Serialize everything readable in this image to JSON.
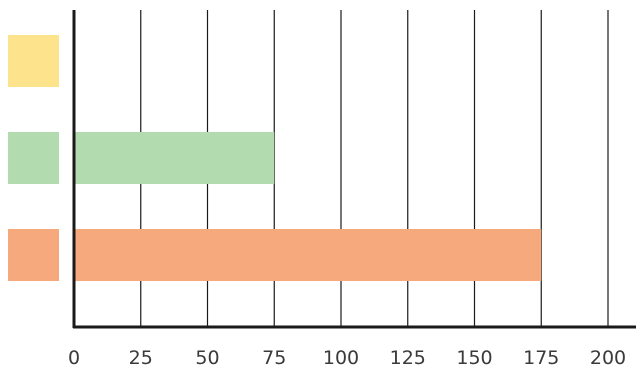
{
  "chart_data": {
    "type": "bar",
    "orientation": "horizontal",
    "categories": [
      "",
      "",
      ""
    ],
    "values": [
      0,
      75,
      175
    ],
    "colors": [
      "#fde38b",
      "#b2dbb0",
      "#f5a97c"
    ],
    "legend_swatch_colors": [
      "#fde38b",
      "#b2dbb0",
      "#f5a97c"
    ],
    "xlim": [
      0,
      200
    ],
    "x_ticks": [
      0,
      25,
      50,
      75,
      100,
      125,
      150,
      175,
      200
    ],
    "x_tick_labels": [
      "0",
      "25",
      "50",
      "75",
      "100",
      "125",
      "150",
      "175",
      "200"
    ],
    "grid": true,
    "grid_color": "#1a1a1a",
    "axis_color": "#1a1a1a",
    "title": "",
    "xlabel": "",
    "ylabel": ""
  }
}
